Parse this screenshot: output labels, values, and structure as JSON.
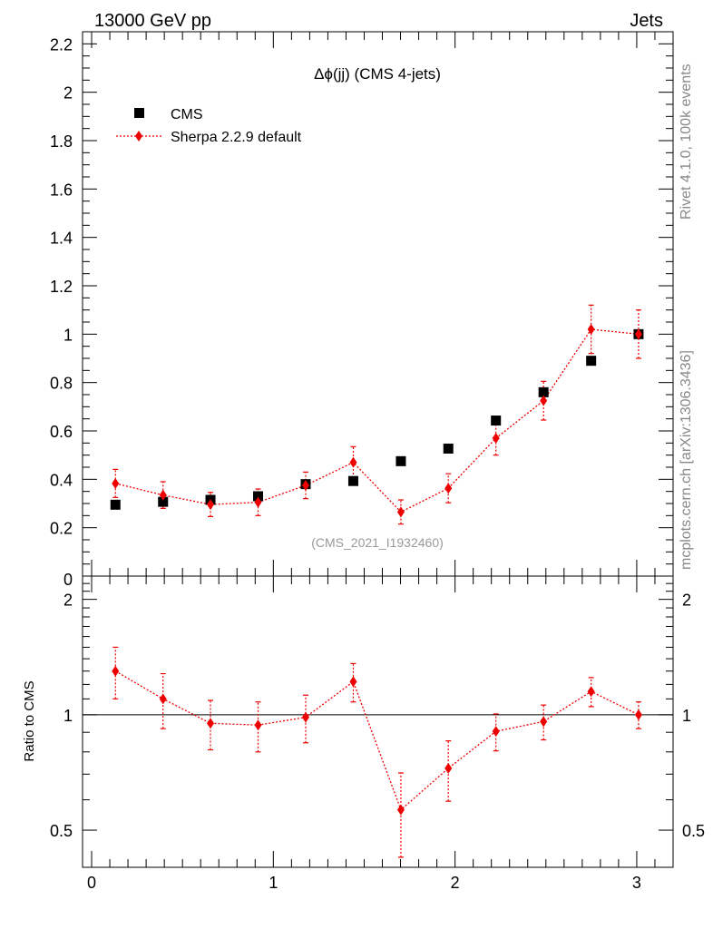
{
  "header": {
    "left_label": "13000 GeV pp",
    "right_label": "Jets"
  },
  "side_labels": {
    "rivet": "Rivet 4.1.0,  100k events",
    "mcplots": "mcplots.cern.ch [arXiv:1306.3436]"
  },
  "colors": {
    "data": "#000000",
    "mc": "#ee0000",
    "watermark": "#999999",
    "side_text": "#888888"
  },
  "chart_data": [
    {
      "type": "scatter",
      "title": "Δϕ(jj) (CMS 4-jets)",
      "analysis_label": "(CMS_2021_I1932460)",
      "xlabel": "",
      "ylabel": "",
      "xlim": [
        -0.05,
        3.2
      ],
      "ylim": [
        0,
        2.25
      ],
      "x_ticks": [
        0,
        1,
        2,
        3
      ],
      "y_ticks": [
        0.2,
        0.4,
        0.6,
        0.8,
        1,
        1.2,
        1.4,
        1.6,
        1.8,
        2,
        2.2
      ],
      "y_tick_labels": [
        "0.2",
        "0.4",
        "0.6",
        "0.8",
        "1",
        "1.2",
        "1.4",
        "1.6",
        "1.8",
        "2",
        "2.2"
      ],
      "y_bottom_label": "0",
      "legend_position": "top-left",
      "series": [
        {
          "name": "CMS",
          "marker": "square",
          "x": [
            0.131,
            0.393,
            0.654,
            0.916,
            1.178,
            1.44,
            1.702,
            1.963,
            2.225,
            2.487,
            2.749,
            3.01
          ],
          "y": [
            0.295,
            0.307,
            0.315,
            0.33,
            0.38,
            0.393,
            0.475,
            0.527,
            0.643,
            0.76,
            0.89,
            1.0
          ]
        },
        {
          "name": "Sherpa 2.2.9 default",
          "marker": "diamond",
          "line": "dotted",
          "x": [
            0.131,
            0.393,
            0.654,
            0.916,
            1.178,
            1.44,
            1.702,
            1.963,
            2.225,
            2.487,
            2.749,
            3.01
          ],
          "y": [
            0.383,
            0.335,
            0.296,
            0.305,
            0.375,
            0.47,
            0.265,
            0.363,
            0.57,
            0.725,
            1.02,
            1.0
          ],
          "err": [
            0.058,
            0.055,
            0.05,
            0.055,
            0.055,
            0.065,
            0.05,
            0.06,
            0.07,
            0.08,
            0.1,
            0.1
          ]
        }
      ]
    },
    {
      "type": "scatter",
      "ylabel": "Ratio to CMS",
      "xlabel": "",
      "yscale": "log",
      "xlim": [
        -0.05,
        3.2
      ],
      "ylim": [
        0.4,
        2.3
      ],
      "x_ticks": [
        0,
        1,
        2,
        3
      ],
      "x_tick_labels": [
        "0",
        "1",
        "2",
        "3"
      ],
      "y_ticks": [
        0.5,
        1,
        2
      ],
      "y_tick_labels": [
        "0.5",
        "1",
        "2"
      ],
      "reference_line": 1,
      "series": [
        {
          "name": "Sherpa 2.2.9 default / CMS",
          "marker": "diamond",
          "line": "dotted",
          "x": [
            0.131,
            0.393,
            0.654,
            0.916,
            1.178,
            1.44,
            1.702,
            1.963,
            2.225,
            2.487,
            2.749,
            3.01
          ],
          "y": [
            1.3,
            1.1,
            0.95,
            0.94,
            0.985,
            1.22,
            0.565,
            0.725,
            0.905,
            0.96,
            1.15,
            1.0
          ],
          "err_low": [
            0.2,
            0.18,
            0.14,
            0.14,
            0.14,
            0.14,
            0.14,
            0.13,
            0.1,
            0.1,
            0.1,
            0.08
          ],
          "err_high": [
            0.2,
            0.18,
            0.14,
            0.14,
            0.14,
            0.14,
            0.14,
            0.13,
            0.1,
            0.1,
            0.1,
            0.08
          ]
        }
      ]
    }
  ]
}
